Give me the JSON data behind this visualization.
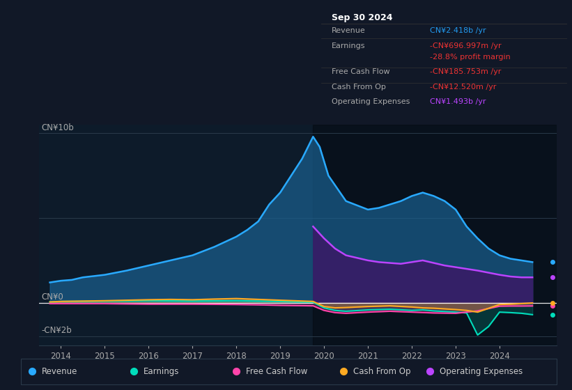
{
  "background_color": "#111827",
  "chart_bg": "#0d1b2a",
  "ylabel_text": "CN¥10b",
  "ylabel_neg": "-CN¥2b",
  "ylabel_zero": "CN¥0",
  "x_ticks": [
    2014,
    2015,
    2016,
    2017,
    2018,
    2019,
    2020,
    2021,
    2022,
    2023,
    2024
  ],
  "ylim": [
    -2.5,
    10.5
  ],
  "xlim": [
    2013.5,
    2025.3
  ],
  "shaded_region_start": 2019.75,
  "info_box": {
    "date": "Sep 30 2024",
    "rows": [
      {
        "label": "Revenue",
        "value": "CN¥2.418b /yr",
        "value_color": "#2299ee"
      },
      {
        "label": "Earnings",
        "value": "-CN¥696.997m /yr",
        "value_color": "#ee3333"
      },
      {
        "label": "",
        "value": "-28.8% profit margin",
        "value_color": "#ee3333"
      },
      {
        "label": "Free Cash Flow",
        "value": "-CN¥185.753m /yr",
        "value_color": "#ee3333"
      },
      {
        "label": "Cash From Op",
        "value": "-CN¥12.520m /yr",
        "value_color": "#ee3333"
      },
      {
        "label": "Operating Expenses",
        "value": "CN¥1.493b /yr",
        "value_color": "#bb44ff"
      }
    ]
  },
  "legend": [
    {
      "label": "Revenue",
      "color": "#29aaff"
    },
    {
      "label": "Earnings",
      "color": "#00ddbb"
    },
    {
      "label": "Free Cash Flow",
      "color": "#ff44aa"
    },
    {
      "label": "Cash From Op",
      "color": "#ffaa22"
    },
    {
      "label": "Operating Expenses",
      "color": "#bb44ff"
    }
  ],
  "revenue": {
    "x": [
      2013.75,
      2014.0,
      2014.25,
      2014.5,
      2015.0,
      2015.5,
      2016.0,
      2016.5,
      2017.0,
      2017.5,
      2018.0,
      2018.25,
      2018.5,
      2018.75,
      2019.0,
      2019.25,
      2019.5,
      2019.75,
      2019.9,
      2020.1,
      2020.5,
      2021.0,
      2021.25,
      2021.5,
      2021.75,
      2022.0,
      2022.25,
      2022.5,
      2022.75,
      2023.0,
      2023.25,
      2023.5,
      2023.75,
      2024.0,
      2024.25,
      2024.5,
      2024.75
    ],
    "y": [
      1.2,
      1.3,
      1.35,
      1.5,
      1.65,
      1.9,
      2.2,
      2.5,
      2.8,
      3.3,
      3.9,
      4.3,
      4.8,
      5.8,
      6.5,
      7.5,
      8.5,
      9.8,
      9.2,
      7.5,
      6.0,
      5.5,
      5.6,
      5.8,
      6.0,
      6.3,
      6.5,
      6.3,
      6.0,
      5.5,
      4.5,
      3.8,
      3.2,
      2.8,
      2.6,
      2.5,
      2.4
    ],
    "color": "#29aaff",
    "fill_color": "#1a6090",
    "fill_alpha": 0.7
  },
  "earnings": {
    "x": [
      2013.75,
      2014.0,
      2015.0,
      2016.0,
      2017.0,
      2018.0,
      2018.5,
      2019.0,
      2019.75,
      2020.0,
      2020.25,
      2020.5,
      2021.0,
      2021.5,
      2022.0,
      2022.25,
      2022.5,
      2023.0,
      2023.25,
      2023.5,
      2023.75,
      2024.0,
      2024.25,
      2024.5,
      2024.75
    ],
    "y": [
      0.05,
      0.08,
      0.1,
      0.12,
      0.1,
      0.12,
      0.1,
      0.08,
      0.03,
      -0.3,
      -0.45,
      -0.5,
      -0.42,
      -0.38,
      -0.45,
      -0.42,
      -0.48,
      -0.55,
      -0.6,
      -1.9,
      -1.4,
      -0.55,
      -0.58,
      -0.62,
      -0.7
    ],
    "color": "#00ddbb",
    "fill_color": "#00ddbb",
    "fill_alpha": 0.18
  },
  "free_cash_flow": {
    "x": [
      2013.75,
      2014.0,
      2015.0,
      2016.0,
      2017.0,
      2018.0,
      2018.5,
      2019.0,
      2019.75,
      2020.0,
      2020.25,
      2020.5,
      2021.0,
      2021.5,
      2022.0,
      2022.5,
      2023.0,
      2023.25,
      2023.5,
      2024.0,
      2024.25,
      2024.5,
      2024.75
    ],
    "y": [
      -0.05,
      -0.05,
      -0.05,
      -0.08,
      -0.08,
      -0.1,
      -0.12,
      -0.15,
      -0.18,
      -0.45,
      -0.58,
      -0.62,
      -0.55,
      -0.5,
      -0.55,
      -0.6,
      -0.62,
      -0.55,
      -0.48,
      -0.2,
      -0.19,
      -0.19,
      -0.185
    ],
    "color": "#ff44aa",
    "fill_color": "#ff44aa",
    "fill_alpha": 0.25
  },
  "cash_from_op": {
    "x": [
      2013.75,
      2014.0,
      2015.0,
      2015.5,
      2016.0,
      2016.5,
      2017.0,
      2017.5,
      2018.0,
      2018.5,
      2019.0,
      2019.75,
      2020.0,
      2020.25,
      2020.5,
      2021.0,
      2021.5,
      2022.0,
      2022.25,
      2022.5,
      2023.0,
      2023.25,
      2023.5,
      2024.0,
      2024.25,
      2024.5,
      2024.75
    ],
    "y": [
      0.05,
      0.08,
      0.12,
      0.15,
      0.18,
      0.2,
      0.18,
      0.22,
      0.25,
      0.2,
      0.15,
      0.08,
      -0.22,
      -0.3,
      -0.28,
      -0.22,
      -0.18,
      -0.25,
      -0.3,
      -0.32,
      -0.4,
      -0.45,
      -0.55,
      -0.1,
      -0.08,
      -0.05,
      -0.012
    ],
    "color": "#ffaa22",
    "fill_color": "#ffaa22",
    "fill_alpha": 0.25
  },
  "operating_expenses": {
    "x": [
      2019.75,
      2020.0,
      2020.25,
      2020.5,
      2021.0,
      2021.25,
      2021.5,
      2021.75,
      2022.0,
      2022.25,
      2022.5,
      2022.75,
      2023.0,
      2023.25,
      2023.5,
      2024.0,
      2024.25,
      2024.5,
      2024.75
    ],
    "y": [
      4.5,
      3.8,
      3.2,
      2.8,
      2.5,
      2.4,
      2.35,
      2.3,
      2.4,
      2.5,
      2.35,
      2.2,
      2.1,
      2.0,
      1.9,
      1.65,
      1.55,
      1.5,
      1.5
    ],
    "color": "#bb44ff",
    "fill_color": "#3a1a66",
    "fill_alpha": 0.85
  }
}
